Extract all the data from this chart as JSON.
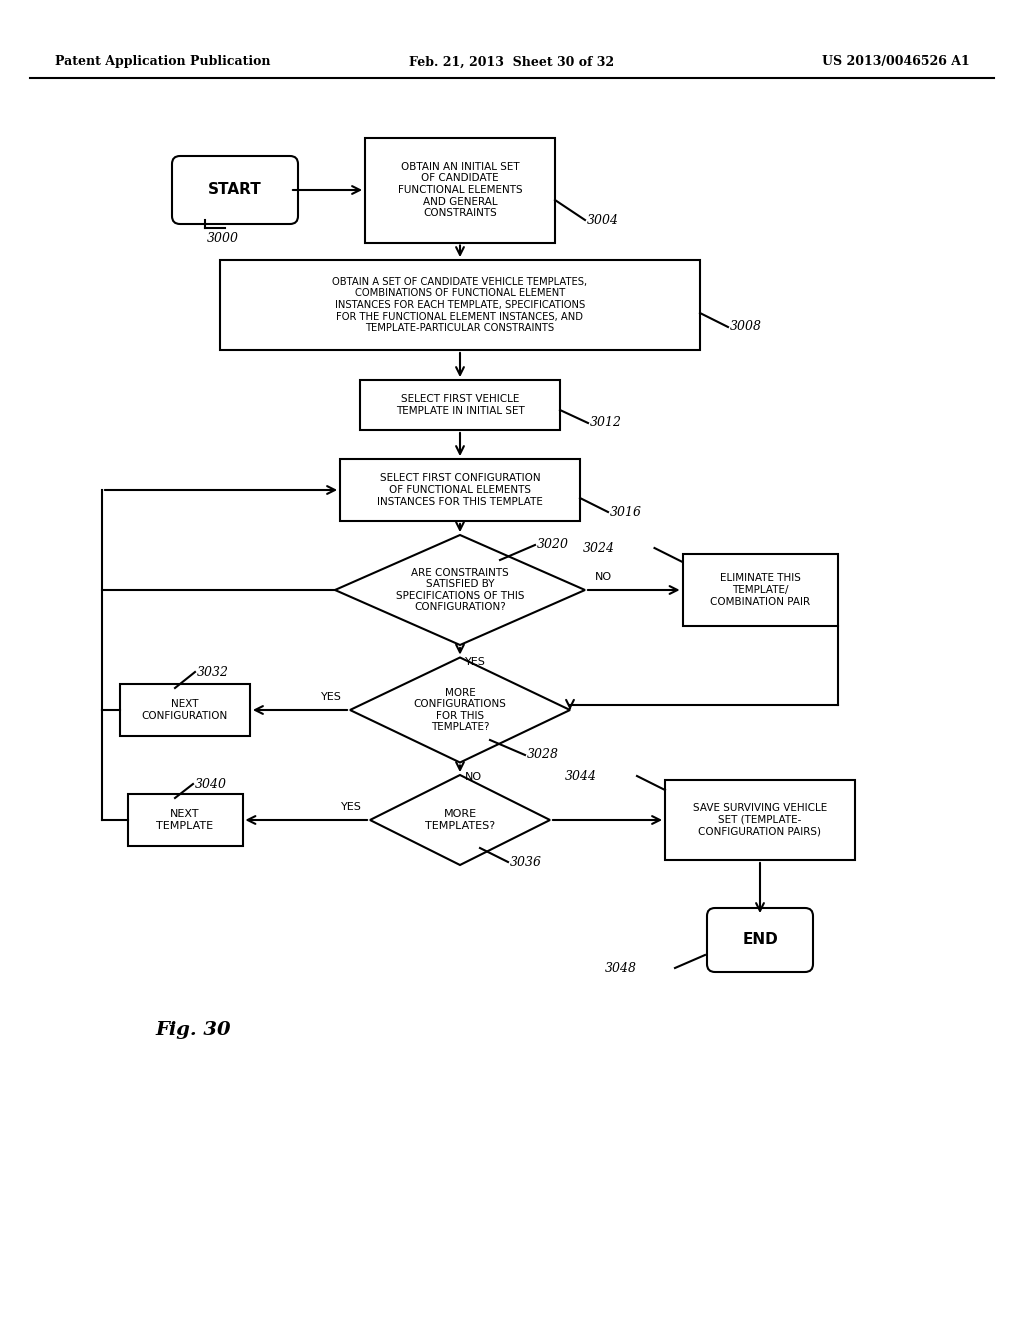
{
  "title_left": "Patent Application Publication",
  "title_mid": "Feb. 21, 2013  Sheet 30 of 32",
  "title_right": "US 2013/0046526 A1",
  "fig_label": "Fig. 30",
  "background_color": "#ffffff",
  "header_fontsize": 9,
  "body_fontsize": 7.5,
  "ref_fontsize": 9,
  "lw": 1.5
}
